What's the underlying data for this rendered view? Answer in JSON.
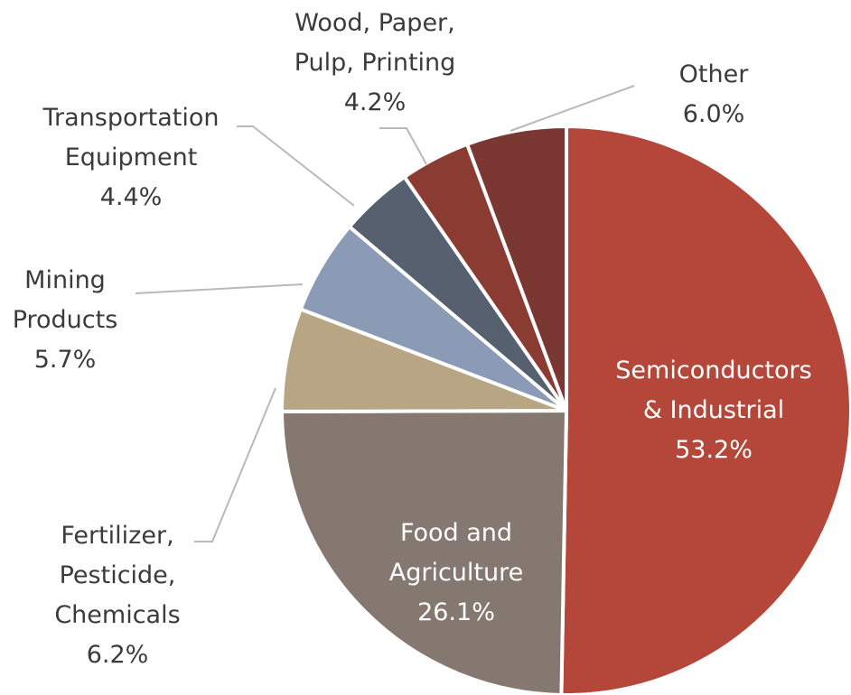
{
  "chart_data": {
    "type": "pie",
    "categories": [
      "Semiconductors\n& Industrial",
      "Food and\nAgriculture",
      "Fertilizer,\nPesticide,\nChemicals",
      "Mining\nProducts",
      "Transportation\nEquipment",
      "Wood, Paper,\nPulp, Printing",
      "Other"
    ],
    "values": [
      53.2,
      26.1,
      6.2,
      5.7,
      4.4,
      4.2,
      6.0
    ],
    "value_labels": [
      "53.2%",
      "26.1%",
      "6.2%",
      "5.7%",
      "4.4%",
      "4.2%",
      "6.0%"
    ],
    "colors": [
      "#b5473a",
      "#857870",
      "#b8a584",
      "#8b9bb5",
      "#56606f",
      "#8a3c32",
      "#7b3833"
    ]
  }
}
